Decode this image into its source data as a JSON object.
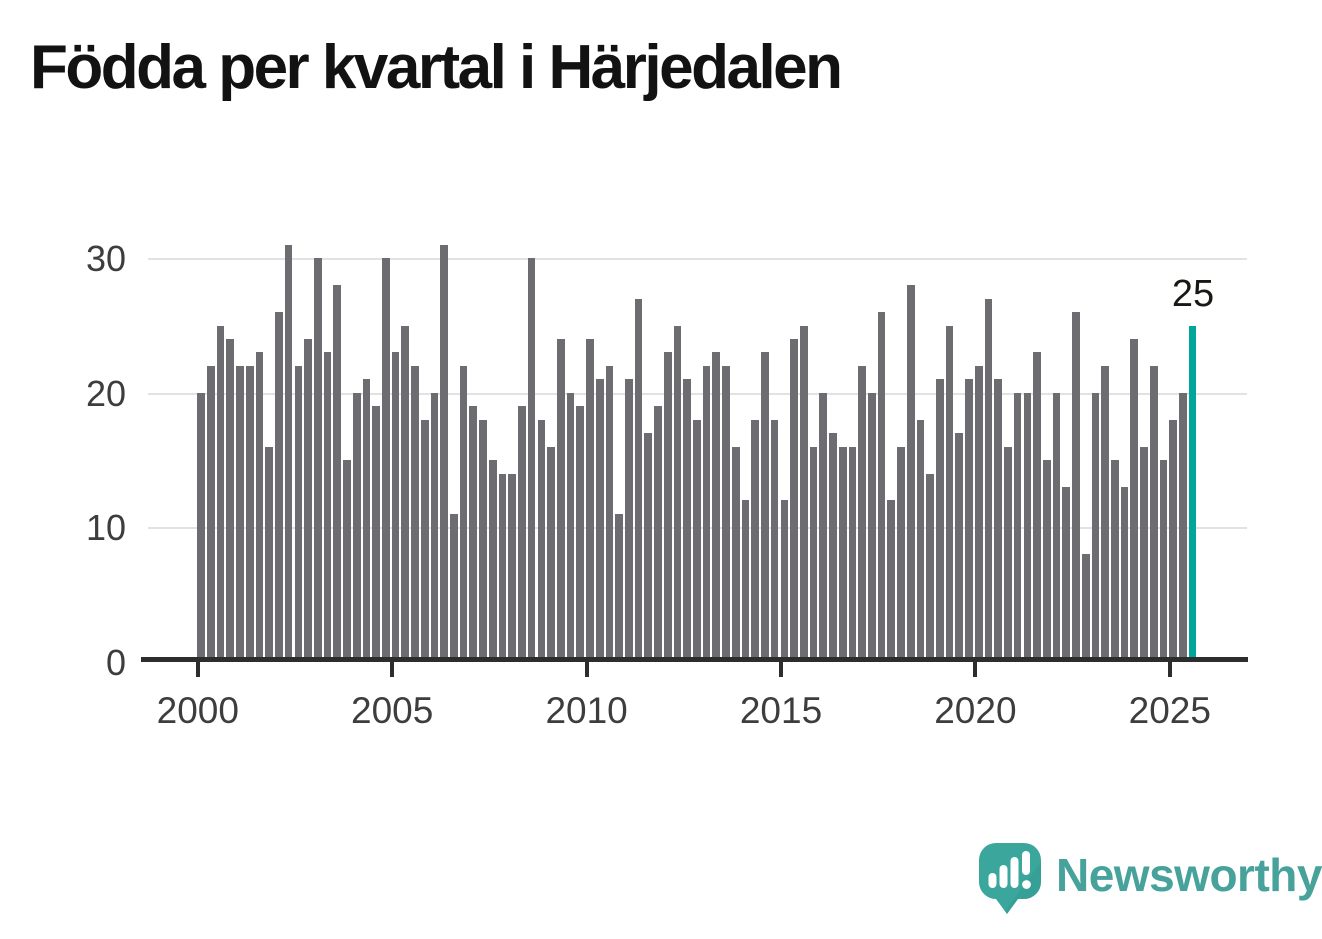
{
  "title": "Födda per kvartal i Härjedalen",
  "chart_data": {
    "type": "bar",
    "title": "Födda per kvartal i Härjedalen",
    "xlabel": "",
    "ylabel": "",
    "x_period": {
      "start": "2000-Q1",
      "end": "2025-Q3",
      "frequency": "quarterly"
    },
    "values": [
      20,
      22,
      25,
      24,
      22,
      22,
      23,
      16,
      26,
      31,
      22,
      24,
      30,
      23,
      28,
      15,
      20,
      21,
      19,
      30,
      23,
      25,
      22,
      18,
      20,
      31,
      11,
      22,
      19,
      18,
      15,
      14,
      14,
      19,
      30,
      18,
      16,
      24,
      20,
      19,
      24,
      21,
      22,
      11,
      21,
      27,
      17,
      19,
      23,
      25,
      21,
      18,
      22,
      23,
      22,
      16,
      12,
      18,
      23,
      18,
      12,
      24,
      25,
      16,
      20,
      17,
      16,
      16,
      22,
      20,
      26,
      12,
      16,
      28,
      18,
      14,
      21,
      25,
      17,
      21,
      22,
      27,
      21,
      16,
      20,
      20,
      23,
      15,
      20,
      13,
      26,
      8,
      20,
      22,
      15,
      13,
      24,
      16,
      22,
      15,
      18,
      20,
      25
    ],
    "highlight_index": 102,
    "highlight_value": 25,
    "highlight_label": "25",
    "y_ticks": [
      0,
      10,
      20,
      30
    ],
    "y_gridlines": [
      10,
      20,
      30
    ],
    "x_ticks": [
      2000,
      2005,
      2010,
      2015,
      2020,
      2025
    ],
    "ylim": [
      0,
      32
    ],
    "grid": true,
    "legend": false,
    "bar_color": "#6d6c70",
    "highlight_color": "#00a69c"
  },
  "colors": {
    "background": "#ffffff",
    "title_text": "#121212",
    "axis_text": "#3d3d3d",
    "gridline": "#e2e2e2",
    "axis_line": "#2d2d2d",
    "annotation_text": "#191914",
    "brand_teal": "#46a29a"
  },
  "footer": {
    "brand": "Newsworthy",
    "logo_icon": "speech-bubble-bar-chart-icon"
  }
}
